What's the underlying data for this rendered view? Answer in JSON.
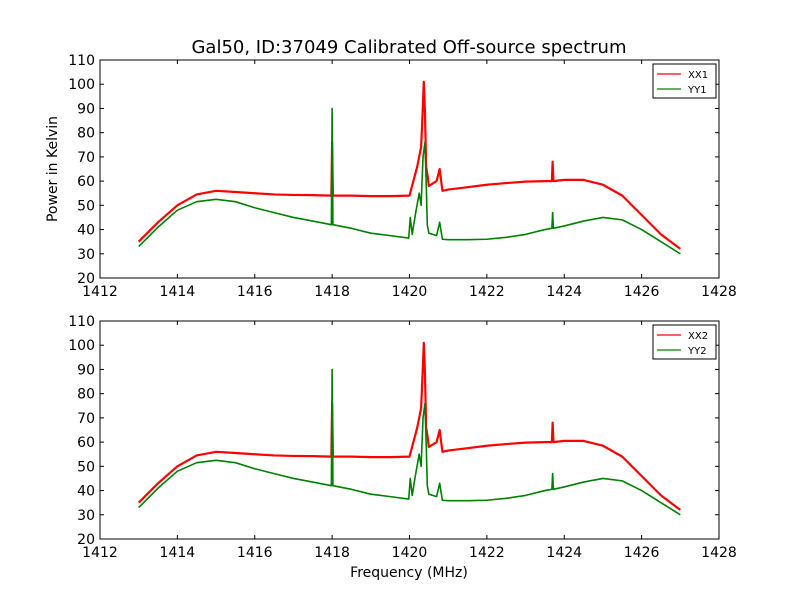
{
  "figure": {
    "title": "Gal50, ID:37049 Calibrated Off-source spectrum",
    "xlabel": "Frequency (MHz)",
    "ylabel": "Power in Kelvin"
  },
  "chart_data": [
    {
      "type": "line",
      "title": "Gal50, ID:37049 Calibrated Off-source spectrum",
      "xlabel": "",
      "ylabel": "Power in Kelvin",
      "xlim": [
        1412,
        1428
      ],
      "ylim": [
        20,
        110
      ],
      "xticks": [
        "1412",
        "1414",
        "1416",
        "1418",
        "1420",
        "1422",
        "1424",
        "1426",
        "1428"
      ],
      "yticks": [
        "20",
        "30",
        "40",
        "50",
        "60",
        "70",
        "80",
        "90",
        "100",
        "110"
      ],
      "legend": "top-right",
      "series": [
        {
          "name": "XX1",
          "color": "#ff0000",
          "x": [
            1413.0,
            1413.5,
            1414.0,
            1414.5,
            1415.0,
            1415.5,
            1416.0,
            1416.5,
            1417.0,
            1417.5,
            1417.98,
            1418.0,
            1418.02,
            1418.5,
            1419.0,
            1419.5,
            1420.0,
            1420.1,
            1420.2,
            1420.3,
            1420.33,
            1420.37,
            1420.4,
            1420.43,
            1420.47,
            1420.5,
            1420.6,
            1420.7,
            1420.78,
            1420.85,
            1421.0,
            1421.5,
            1422.0,
            1422.5,
            1423.0,
            1423.5,
            1423.68,
            1423.7,
            1423.72,
            1424.0,
            1424.5,
            1425.0,
            1425.5,
            1426.0,
            1426.5,
            1427.0
          ],
          "y": [
            35,
            43,
            50,
            54.5,
            56,
            55.5,
            55,
            54.5,
            54.3,
            54.2,
            54,
            76,
            54,
            54,
            53.8,
            53.8,
            54,
            60,
            66,
            74,
            85,
            101,
            88,
            66,
            62,
            58,
            59,
            60,
            65,
            56,
            56.5,
            57.5,
            58.5,
            59.2,
            59.8,
            60,
            60,
            68,
            60,
            60.5,
            60.5,
            58.5,
            54,
            46,
            38,
            32
          ]
        },
        {
          "name": "YY1",
          "color": "#008000",
          "x": [
            1413.0,
            1413.5,
            1414.0,
            1414.5,
            1415.0,
            1415.5,
            1416.0,
            1416.5,
            1417.0,
            1417.5,
            1417.98,
            1418.0,
            1418.02,
            1418.5,
            1419.0,
            1419.5,
            1419.98,
            1420.02,
            1420.07,
            1420.15,
            1420.25,
            1420.3,
            1420.35,
            1420.4,
            1420.43,
            1420.46,
            1420.5,
            1420.6,
            1420.7,
            1420.78,
            1420.85,
            1421.0,
            1421.5,
            1422.0,
            1422.5,
            1423.0,
            1423.5,
            1423.68,
            1423.7,
            1423.72,
            1424.0,
            1424.5,
            1425.0,
            1425.5,
            1426.0,
            1426.5,
            1427.0
          ],
          "y": [
            33,
            41,
            48,
            51.5,
            52.5,
            51.5,
            49,
            47,
            45,
            43.5,
            42,
            90,
            42,
            40.5,
            38.5,
            37.5,
            36.5,
            45,
            38,
            46,
            55,
            50,
            70,
            76,
            60,
            42,
            38.5,
            38,
            37.5,
            43,
            36,
            35.8,
            35.8,
            36,
            36.8,
            38,
            40,
            40.5,
            47,
            40.5,
            41.5,
            43.5,
            45,
            44,
            40,
            35,
            30
          ]
        }
      ]
    },
    {
      "type": "line",
      "title": "",
      "xlabel": "Frequency (MHz)",
      "ylabel": "",
      "xlim": [
        1412,
        1428
      ],
      "ylim": [
        20,
        110
      ],
      "xticks": [
        "1412",
        "1414",
        "1416",
        "1418",
        "1420",
        "1422",
        "1424",
        "1426",
        "1428"
      ],
      "yticks": [
        "20",
        "30",
        "40",
        "50",
        "60",
        "70",
        "80",
        "90",
        "100",
        "110"
      ],
      "legend": "top-right",
      "series": [
        {
          "name": "XX2",
          "color": "#ff0000",
          "x": [
            1413.0,
            1413.5,
            1414.0,
            1414.5,
            1415.0,
            1415.5,
            1416.0,
            1416.5,
            1417.0,
            1417.5,
            1417.98,
            1418.0,
            1418.02,
            1418.5,
            1419.0,
            1419.5,
            1420.0,
            1420.1,
            1420.2,
            1420.3,
            1420.33,
            1420.37,
            1420.4,
            1420.43,
            1420.47,
            1420.5,
            1420.6,
            1420.7,
            1420.78,
            1420.85,
            1421.0,
            1421.5,
            1422.0,
            1422.5,
            1423.0,
            1423.5,
            1423.68,
            1423.7,
            1423.72,
            1424.0,
            1424.5,
            1425.0,
            1425.5,
            1426.0,
            1426.5,
            1427.0
          ],
          "y": [
            35,
            43,
            50,
            54.5,
            56,
            55.5,
            55,
            54.5,
            54.3,
            54.2,
            54,
            76,
            54,
            54,
            53.8,
            53.8,
            54,
            60,
            66,
            74,
            85,
            101,
            88,
            66,
            62,
            58,
            59,
            60,
            65,
            56,
            56.5,
            57.5,
            58.5,
            59.2,
            59.8,
            60,
            60,
            68,
            60,
            60.5,
            60.5,
            58.5,
            54,
            46,
            38,
            32
          ]
        },
        {
          "name": "YY2",
          "color": "#008000",
          "x": [
            1413.0,
            1413.5,
            1414.0,
            1414.5,
            1415.0,
            1415.5,
            1416.0,
            1416.5,
            1417.0,
            1417.5,
            1417.98,
            1418.0,
            1418.02,
            1418.5,
            1419.0,
            1419.5,
            1419.98,
            1420.02,
            1420.07,
            1420.15,
            1420.25,
            1420.3,
            1420.35,
            1420.4,
            1420.43,
            1420.46,
            1420.5,
            1420.6,
            1420.7,
            1420.78,
            1420.85,
            1421.0,
            1421.5,
            1422.0,
            1422.5,
            1423.0,
            1423.5,
            1423.68,
            1423.7,
            1423.72,
            1424.0,
            1424.5,
            1425.0,
            1425.5,
            1426.0,
            1426.5,
            1427.0
          ],
          "y": [
            33,
            41,
            48,
            51.5,
            52.5,
            51.5,
            49,
            47,
            45,
            43.5,
            42,
            90,
            42,
            40.5,
            38.5,
            37.5,
            36.5,
            45,
            38,
            46,
            55,
            50,
            70,
            76,
            60,
            42,
            38.5,
            38,
            37.5,
            43,
            36,
            35.8,
            35.8,
            36,
            36.8,
            38,
            40,
            40.5,
            47,
            40.5,
            41.5,
            43.5,
            45,
            44,
            40,
            35,
            30
          ]
        }
      ]
    }
  ]
}
